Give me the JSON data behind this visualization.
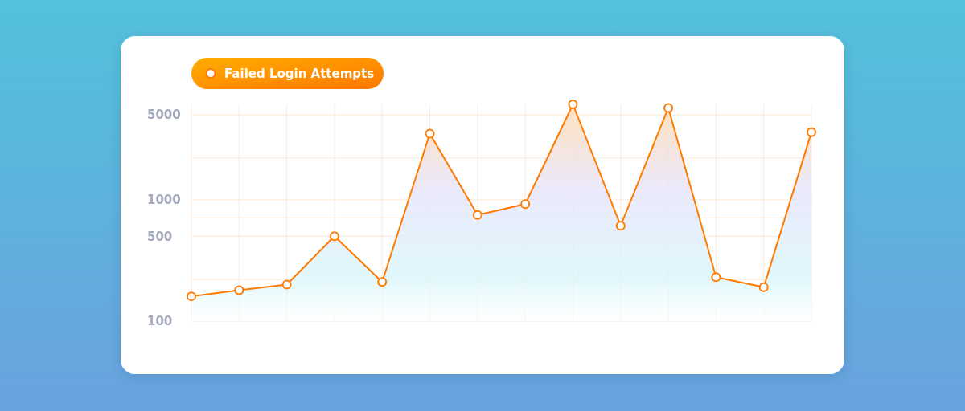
{
  "chart_data": {
    "type": "area",
    "categories": [
      null,
      null,
      null,
      null,
      null,
      null,
      null,
      null,
      null,
      null,
      null,
      null,
      null,
      null
    ],
    "series": [
      {
        "name": "Failed Login Attempts",
        "color": "#ff7a00",
        "values": [
          160,
          180,
          200,
          500,
          210,
          3500,
          750,
          920,
          6100,
          610,
          5700,
          230,
          190,
          3600
        ]
      }
    ],
    "ylim": [
      100,
      6100
    ],
    "yticks": [
      100,
      {
        "value": 220,
        "label": null
      },
      500,
      {
        "value": 710,
        "label": null
      },
      1000,
      {
        "value": 2200,
        "label": null
      },
      5000
    ],
    "log": true,
    "grid": true,
    "legend": "top left",
    "marker": "circle",
    "line_style": "solid"
  }
}
